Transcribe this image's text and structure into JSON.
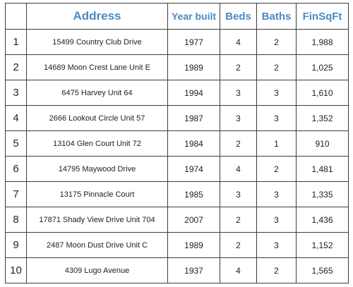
{
  "table": {
    "headers": {
      "index": "",
      "address": "Address",
      "year_built": "Year built",
      "beds": "Beds",
      "baths": "Baths",
      "fin_sq_ft": "FinSqFt"
    },
    "rows": [
      {
        "index": "1",
        "address": "15499 Country Club Drive",
        "year_built": "1977",
        "beds": "4",
        "baths": "2",
        "fin_sq_ft": "1,988"
      },
      {
        "index": "2",
        "address": "14689 Moon Crest Lane Unit E",
        "year_built": "1989",
        "beds": "2",
        "baths": "2",
        "fin_sq_ft": "1,025"
      },
      {
        "index": "3",
        "address": "6475 Harvey Unit 64",
        "year_built": "1994",
        "beds": "3",
        "baths": "3",
        "fin_sq_ft": "1,610"
      },
      {
        "index": "4",
        "address": "2666 Lookout Circle Unit 57",
        "year_built": "1987",
        "beds": "3",
        "baths": "3",
        "fin_sq_ft": "1,352"
      },
      {
        "index": "5",
        "address": "13104 Glen Court Unit 72",
        "year_built": "1984",
        "beds": "2",
        "baths": "1",
        "fin_sq_ft": "910"
      },
      {
        "index": "6",
        "address": "14795 Maywood Drive",
        "year_built": "1974",
        "beds": "4",
        "baths": "2",
        "fin_sq_ft": "1,481"
      },
      {
        "index": "7",
        "address": "13175 Pinnacle Court",
        "year_built": "1985",
        "beds": "3",
        "baths": "3",
        "fin_sq_ft": "1,335"
      },
      {
        "index": "8",
        "address": "17871 Shady View Drive Unit 704",
        "year_built": "2007",
        "beds": "2",
        "baths": "3",
        "fin_sq_ft": "1,436"
      },
      {
        "index": "9",
        "address": "2487 Moon Dust Drive Unit C",
        "year_built": "1989",
        "beds": "2",
        "baths": "3",
        "fin_sq_ft": "1,152"
      },
      {
        "index": "10",
        "address": "4309 Lugo Avenue",
        "year_built": "1937",
        "beds": "4",
        "baths": "2",
        "fin_sq_ft": "1,565"
      }
    ]
  },
  "colors": {
    "header_text": "#4a8ac4",
    "body_text": "#1e1e1e",
    "border": "#3c3c3c"
  }
}
